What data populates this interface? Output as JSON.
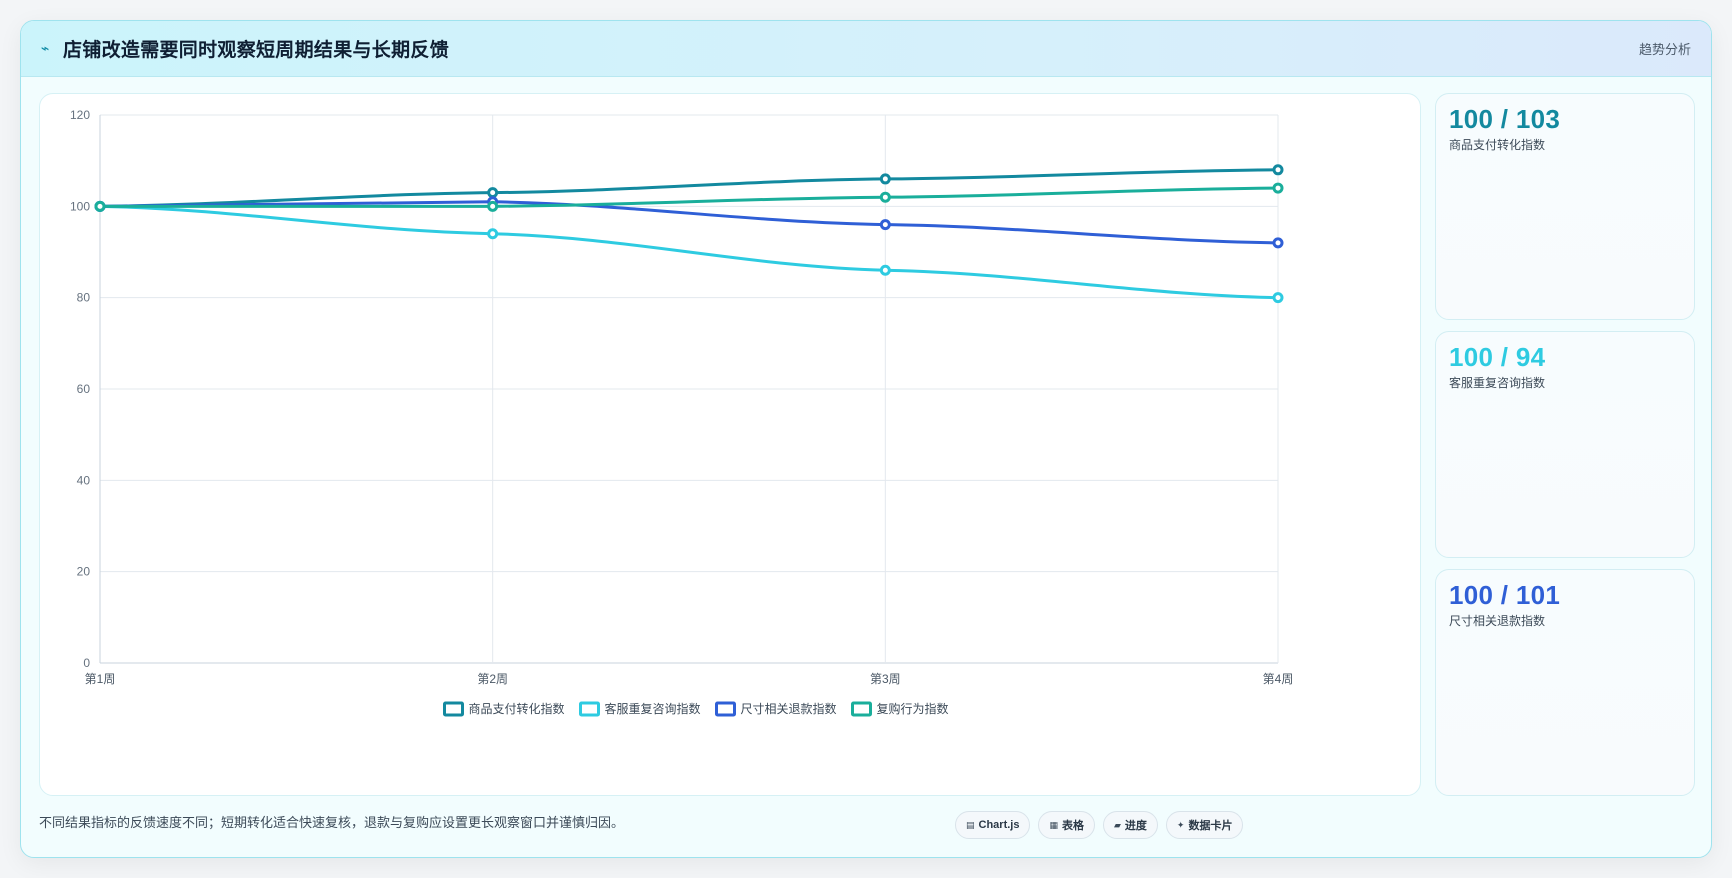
{
  "header": {
    "icon": "trend-icon",
    "title": "店铺改造需要同时观察短周期结果与长期反馈",
    "tag": "趋势分析"
  },
  "colors": {
    "teal_dark": "#13899f",
    "cyan": "#2ecbe1",
    "blue": "#2f5fd6",
    "green": "#1aae9b"
  },
  "chart_data": {
    "type": "line",
    "categories": [
      "第1周",
      "第2周",
      "第3周",
      "第4周"
    ],
    "ylim": [
      0,
      120
    ],
    "y_ticks": [
      0,
      20,
      40,
      60,
      80,
      100,
      120
    ],
    "grid": true,
    "legend_position": "bottom",
    "series": [
      {
        "name": "商品支付转化指数",
        "color": "#13899f",
        "values": [
          100,
          103,
          106,
          108
        ]
      },
      {
        "name": "客服重复咨询指数",
        "color": "#2ecbe1",
        "values": [
          100,
          94,
          86,
          80
        ]
      },
      {
        "name": "尺寸相关退款指数",
        "color": "#2f5fd6",
        "values": [
          100,
          101,
          96,
          92
        ]
      },
      {
        "name": "复购行为指数",
        "color": "#1aae9b",
        "values": [
          100,
          100,
          102,
          104
        ]
      }
    ]
  },
  "stats": [
    {
      "value": "100 / 103",
      "label": "商品支付转化指数",
      "color": "#13899f"
    },
    {
      "value": "100 / 94",
      "label": "客服重复咨询指数",
      "color": "#2ecbe1"
    },
    {
      "value": "100 / 101",
      "label": "尺寸相关退款指数",
      "color": "#2f5fd6"
    }
  ],
  "footer": {
    "note": "不同结果指标的反馈速度不同；短期转化适合快速复核，退款与复购应设置更长观察窗口并谨慎归因。",
    "chips": [
      {
        "icon": "▤",
        "label": "Chart.js"
      },
      {
        "icon": "▦",
        "label": "表格"
      },
      {
        "icon": "▰",
        "label": "进度"
      },
      {
        "icon": "✦",
        "label": "数据卡片"
      }
    ]
  }
}
